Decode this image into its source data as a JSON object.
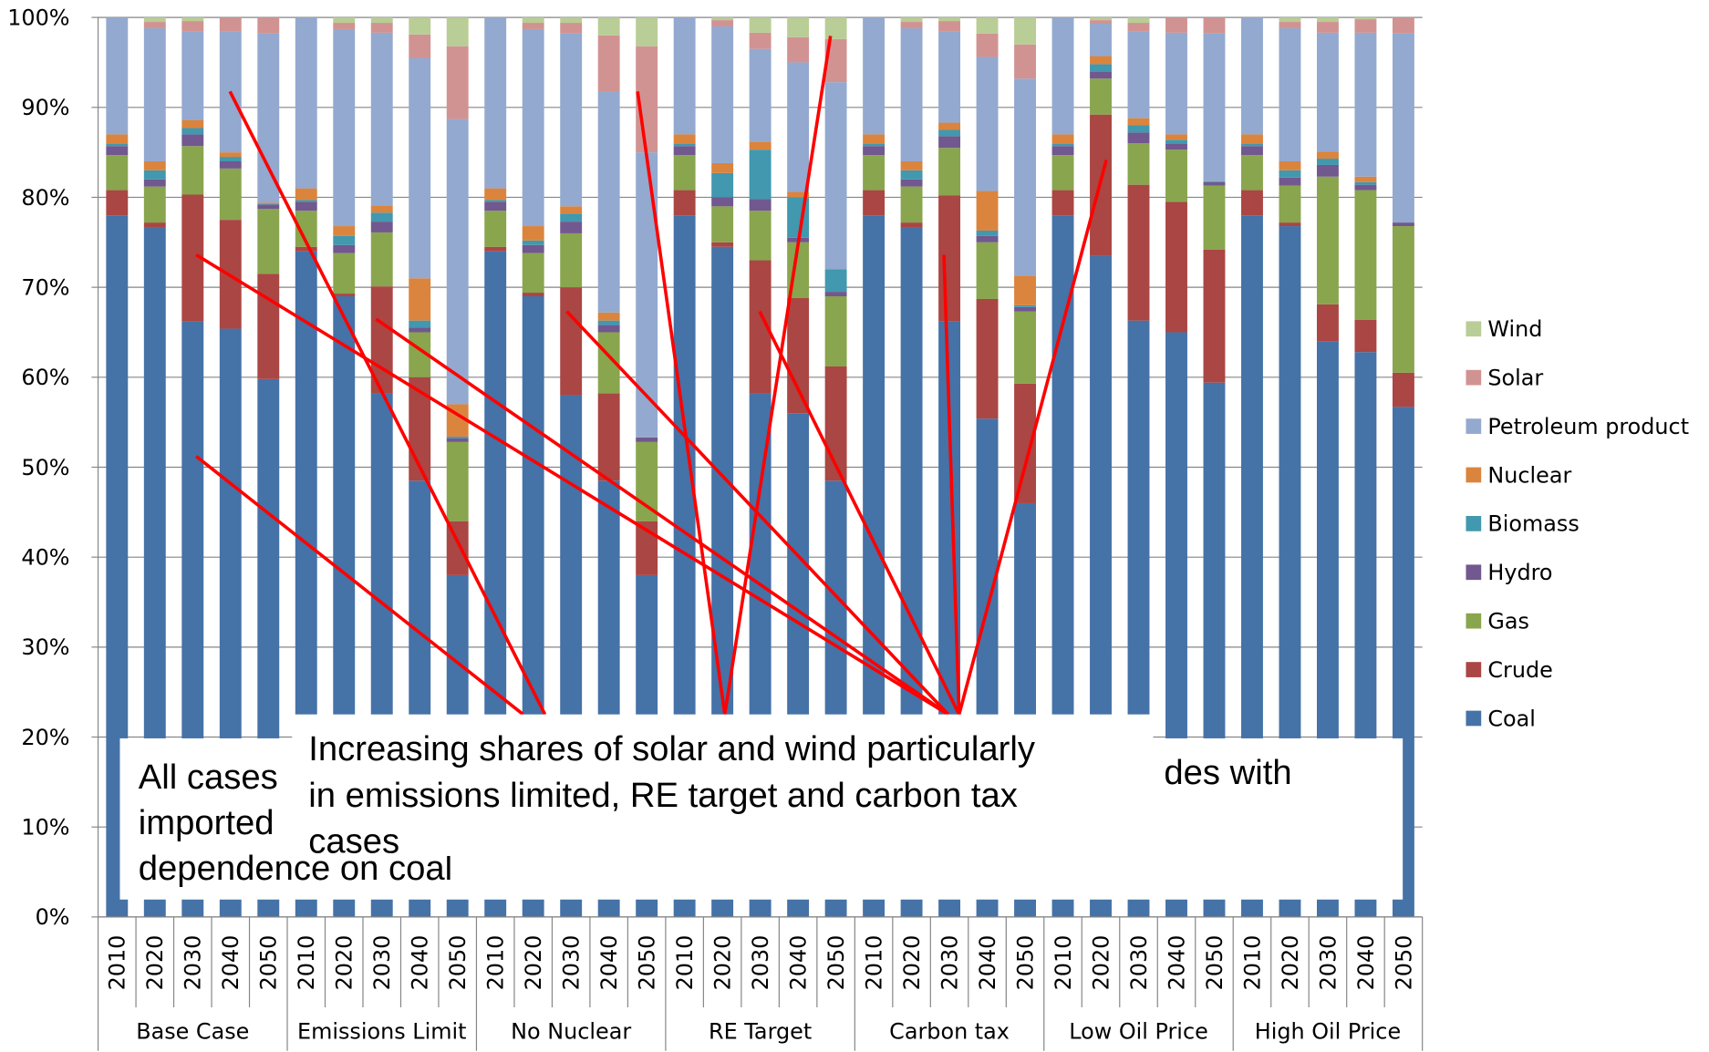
{
  "chart_data": {
    "type": "stacked_bar",
    "categories": [
      "2010",
      "2020",
      "2030",
      "2040",
      "2050",
      "2010",
      "2020",
      "2030",
      "2040",
      "2050",
      "2010",
      "2020",
      "2030",
      "2040",
      "2050",
      "2010",
      "2020",
      "2030",
      "2040",
      "2050",
      "2010",
      "2020",
      "2030",
      "2040",
      "2050",
      "2010",
      "2020",
      "2030",
      "2040",
      "2050",
      "2010",
      "2020",
      "2030",
      "2040",
      "2050"
    ],
    "groups": [
      "Base Case",
      "Emissions Limit",
      "No Nuclear",
      "RE Target",
      "Carbon tax",
      "Low Oil Price",
      "High Oil Price"
    ],
    "ylim": [
      0,
      100
    ],
    "yticks": [
      {
        "value": 0,
        "label": "0%"
      },
      {
        "value": 10,
        "label": "10%"
      },
      {
        "value": 20,
        "label": "20%"
      },
      {
        "value": 30,
        "label": "30%"
      },
      {
        "value": 40,
        "label": "40%"
      },
      {
        "value": 50,
        "label": "50%"
      },
      {
        "value": 60,
        "label": "60%"
      },
      {
        "value": 70,
        "label": "70%"
      },
      {
        "value": 80,
        "label": "80%"
      },
      {
        "value": 90,
        "label": "90%"
      },
      {
        "value": 100,
        "label": "100%"
      }
    ],
    "grid": true,
    "legend": "right",
    "series": [
      {
        "name": "Coal",
        "color": "#4572a7",
        "values": [
          78,
          76.7,
          66.2,
          65.4,
          59.8,
          74,
          69,
          58.2,
          48.5,
          38,
          74,
          69,
          58,
          48.5,
          38,
          78,
          74.5,
          58.2,
          56,
          48.5,
          78,
          76.7,
          66.2,
          55.4,
          46,
          78,
          73.5,
          66.3,
          65,
          59.4,
          78,
          76.8,
          64,
          62.8,
          56.7
        ]
      },
      {
        "name": "Crude",
        "color": "#aa4643",
        "values": [
          2.8,
          0.5,
          14.1,
          12.1,
          11.7,
          0.5,
          0.3,
          11.9,
          11.5,
          6,
          0.5,
          0.4,
          12,
          9.7,
          6,
          2.8,
          0.5,
          14.8,
          12.8,
          12.7,
          2.8,
          0.5,
          14,
          13.3,
          13.3,
          2.8,
          15.7,
          15.1,
          14.5,
          14.8,
          2.8,
          0.4,
          4.1,
          3.6,
          3.8
        ]
      },
      {
        "name": "Gas",
        "color": "#89a54e",
        "values": [
          3.9,
          4,
          5.4,
          5.7,
          7.2,
          4,
          4.5,
          6,
          5,
          8.8,
          4,
          4.4,
          6,
          6.8,
          8.8,
          3.9,
          4,
          5.5,
          6.2,
          7.8,
          3.9,
          4,
          5.3,
          6.3,
          8,
          3.9,
          4,
          4.6,
          5.8,
          7.1,
          3.9,
          4.1,
          14.2,
          14.4,
          16.3
        ]
      },
      {
        "name": "Hydro",
        "color": "#71588f",
        "values": [
          1,
          0.8,
          1.3,
          0.8,
          0.5,
          1,
          0.9,
          1.2,
          0.5,
          0.4,
          1,
          0.9,
          1.3,
          0.8,
          0.5,
          1,
          1,
          1.3,
          0.5,
          0.5,
          1,
          0.8,
          1.3,
          0.7,
          0.5,
          1,
          0.8,
          1.2,
          0.7,
          0.4,
          1,
          0.9,
          1.3,
          0.6,
          0.4
        ]
      },
      {
        "name": "Biomass",
        "color": "#4198af",
        "values": [
          0.3,
          1,
          0.7,
          0.5,
          0.1,
          0.2,
          1,
          1,
          0.8,
          0.2,
          0.2,
          0.5,
          0.9,
          0.5,
          0,
          0.3,
          2.7,
          5.5,
          4.5,
          2.5,
          0.3,
          1,
          0.7,
          0.6,
          0.2,
          0.3,
          0.8,
          0.8,
          0.4,
          0.1,
          0.3,
          0.8,
          0.7,
          0.3,
          0
        ]
      },
      {
        "name": "Nuclear",
        "color": "#db843d",
        "values": [
          1,
          1,
          0.9,
          0.5,
          0.1,
          1.3,
          1.1,
          0.8,
          4.7,
          3.6,
          1.3,
          1.6,
          0.8,
          0.9,
          0,
          1,
          1.1,
          0.9,
          0.6,
          0,
          1,
          1,
          0.8,
          4.4,
          3.3,
          1,
          0.9,
          0.8,
          0.6,
          0,
          1,
          1,
          0.8,
          0.6,
          0
        ]
      },
      {
        "name": "Petroleum product",
        "color": "#93a9cf",
        "values": [
          13,
          14.8,
          9.8,
          13.4,
          18.8,
          19,
          21.9,
          19.2,
          24.5,
          31.7,
          19,
          21.9,
          19.2,
          24.6,
          31.7,
          13,
          15.2,
          10.3,
          14.4,
          20.8,
          13,
          14.8,
          10.1,
          14.9,
          21.9,
          13,
          3.6,
          9.6,
          11.3,
          16.4,
          13,
          14.8,
          13.2,
          16,
          21
        ]
      },
      {
        "name": "Solar",
        "color": "#d19392",
        "values": [
          0,
          0.7,
          1.2,
          1.6,
          1.8,
          0,
          0.7,
          1.1,
          2.6,
          8.1,
          0,
          0.7,
          1.2,
          6.2,
          11.8,
          0,
          0.7,
          1.8,
          2.8,
          4.8,
          0,
          0.7,
          1.2,
          2.6,
          3.8,
          0,
          0.4,
          1,
          1.7,
          1.8,
          0,
          0.7,
          1.2,
          1.5,
          1.8
        ]
      },
      {
        "name": "Wind",
        "color": "#b9cd96",
        "values": [
          0,
          0.5,
          0.4,
          0,
          0,
          0,
          0.6,
          0.6,
          1.9,
          3.2,
          0,
          0.6,
          0.6,
          2,
          3.2,
          0,
          0.3,
          1.7,
          2.2,
          2.4,
          0,
          0.5,
          0.4,
          1.8,
          3,
          0,
          0.3,
          0.6,
          0,
          0,
          0,
          0.5,
          0.5,
          0.2,
          0
        ]
      }
    ],
    "annotations": [
      {
        "text": [
          "All cases",
          "des with",
          "imported",
          "dependence on coal"
        ]
      },
      {
        "text": [
          "Increasing shares of solar and wind particularly",
          "in emissions limited, RE target and carbon tax",
          "cases"
        ]
      }
    ]
  }
}
